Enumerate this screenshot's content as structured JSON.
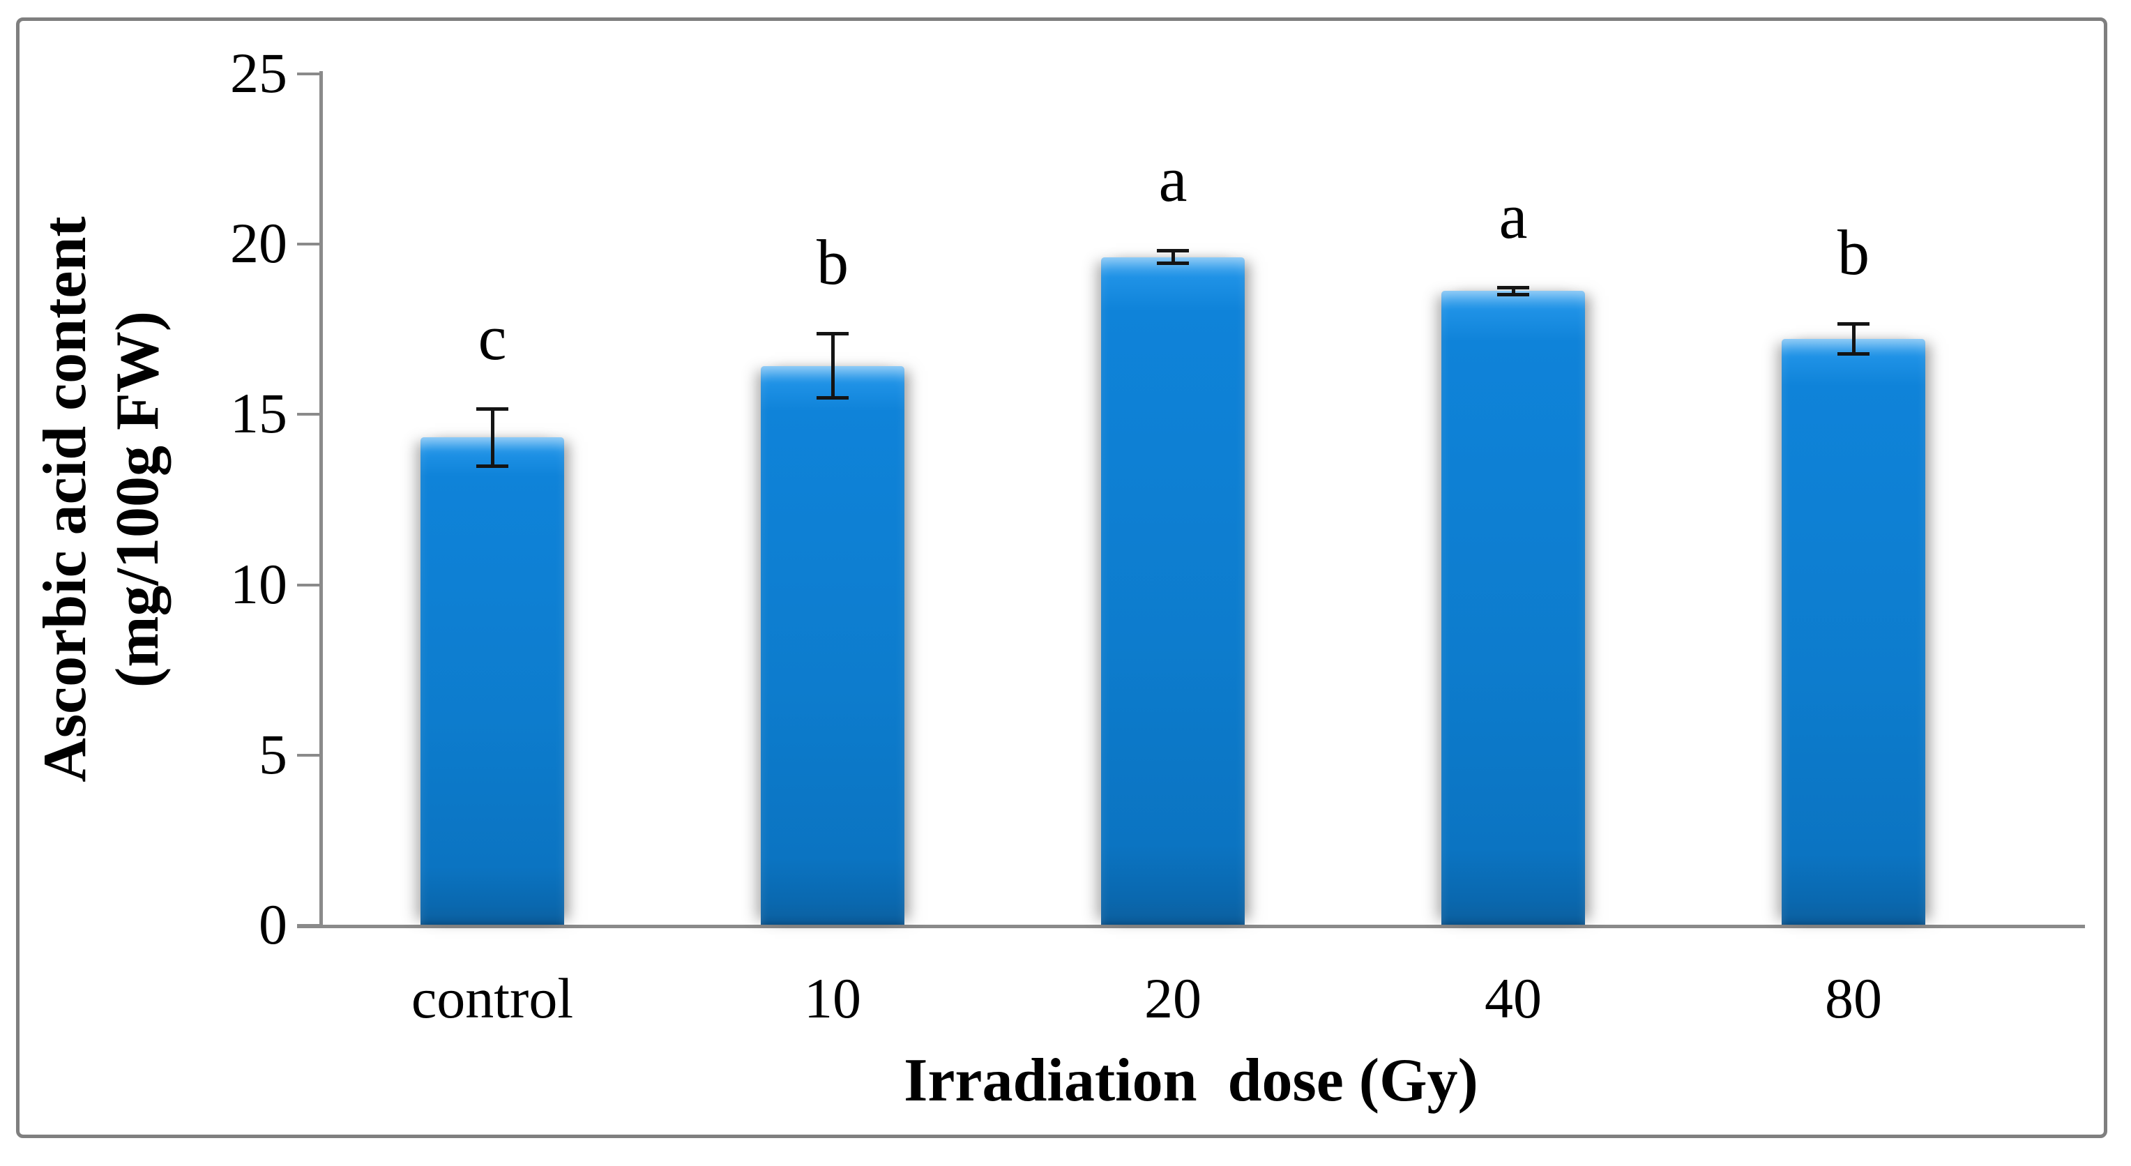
{
  "chart_data": {
    "type": "bar",
    "categories": [
      "control",
      "10",
      "20",
      "40",
      "80"
    ],
    "values": [
      14.3,
      16.4,
      19.6,
      18.6,
      17.2
    ],
    "errors": [
      0.85,
      0.95,
      0.2,
      0.12,
      0.45
    ],
    "sig_letters": [
      "c",
      "b",
      "a",
      "a",
      "b"
    ],
    "title": "",
    "xlabel": "Irradiation  dose (Gy)",
    "ylabel_line1": "Ascorbic acid content",
    "ylabel_line2": "(mg/100g FW)",
    "ylim": [
      0,
      25
    ],
    "ytick_step": 5,
    "ytick_labels": [
      "0",
      "5",
      "10",
      "15",
      "20",
      "25"
    ],
    "grid": false,
    "legend_position": "none",
    "bar_color": "#0d7ccd",
    "bar_highlight": "#4fadf1",
    "bar_shadow_edge": "#0c5f9e",
    "axis_color": "#8a8a8a",
    "error_bar_color": "#141414",
    "frame_border_color": "#7f7f7f",
    "background_color": "#ffffff"
  }
}
